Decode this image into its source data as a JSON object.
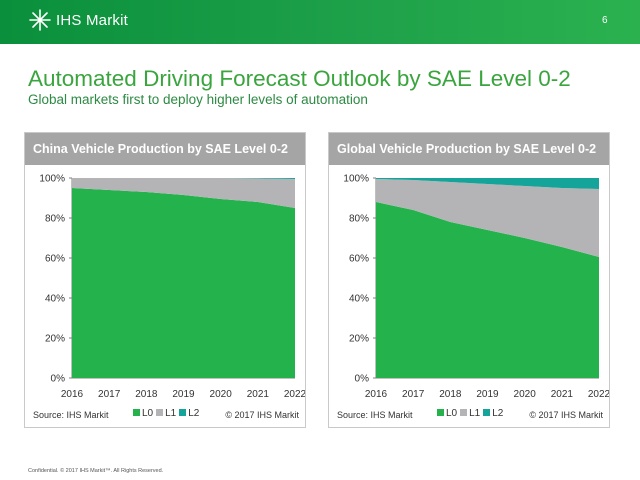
{
  "header": {
    "brand": "IHS Markit",
    "page_number": "6",
    "colors": {
      "bar": "#1a9a45"
    }
  },
  "slide": {
    "title": "Automated Driving Forecast Outlook by SAE Level 0-2",
    "subtitle": "Global markets first to deploy higher levels of automation",
    "footer": "Confidential. © 2017 IHS Markit™. All Rights Reserved."
  },
  "panels": [
    {
      "header": "China Vehicle Production by SAE Level 0-2",
      "source": "Source: IHS Markit",
      "copyright": "© 2017 IHS Markit"
    },
    {
      "header": "Global Vehicle Production by SAE Level 0-2",
      "source": "Source: IHS Markit",
      "copyright": "© 2017 IHS Markit"
    }
  ],
  "chart_data": [
    {
      "type": "area",
      "stacked": true,
      "title": "China Vehicle Production by SAE Level 0-2",
      "x": [
        "2016",
        "2017",
        "2018",
        "2019",
        "2020",
        "2021",
        "2022"
      ],
      "ylim": [
        0,
        100
      ],
      "yticks": [
        "0%",
        "20%",
        "40%",
        "60%",
        "80%",
        "100%"
      ],
      "legend_position": "bottom",
      "series": [
        {
          "name": "L0",
          "color": "#23b24b",
          "values": [
            95,
            94,
            93,
            91.5,
            89.5,
            88,
            85
          ]
        },
        {
          "name": "L1",
          "color": "#b4b4b7",
          "values": [
            5,
            6,
            7,
            8.5,
            10.5,
            11.8,
            14.5
          ]
        },
        {
          "name": "L2",
          "color": "#14a49a",
          "values": [
            0,
            0,
            0,
            0,
            0,
            0.2,
            0.5
          ]
        }
      ]
    },
    {
      "type": "area",
      "stacked": true,
      "title": "Global Vehicle Production by SAE Level 0-2",
      "x": [
        "2016",
        "2017",
        "2018",
        "2019",
        "2020",
        "2021",
        "2022"
      ],
      "ylim": [
        0,
        100
      ],
      "yticks": [
        "0%",
        "20%",
        "40%",
        "60%",
        "80%",
        "100%"
      ],
      "legend_position": "bottom",
      "series": [
        {
          "name": "L0",
          "color": "#23b24b",
          "values": [
            88,
            84,
            78,
            74,
            70,
            65.5,
            60.5
          ]
        },
        {
          "name": "L1",
          "color": "#b4b4b7",
          "values": [
            11.5,
            15,
            20,
            23,
            26,
            29.5,
            34
          ]
        },
        {
          "name": "L2",
          "color": "#14a49a",
          "values": [
            0.5,
            1,
            2,
            3,
            4,
            5,
            5.5
          ]
        }
      ]
    }
  ]
}
